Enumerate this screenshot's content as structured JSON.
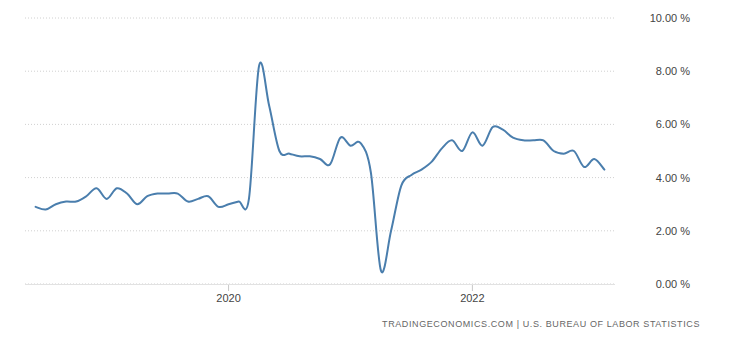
{
  "chart_data": {
    "type": "line",
    "source": "TRADINGECONOMICS.COM | U.S. BUREAU OF LABOR STATISTICS",
    "x": [
      2018.417,
      2018.5,
      2018.583,
      2018.667,
      2018.75,
      2018.833,
      2018.917,
      2019,
      2019.083,
      2019.167,
      2019.25,
      2019.333,
      2019.417,
      2019.5,
      2019.583,
      2019.667,
      2019.75,
      2019.833,
      2019.917,
      2020,
      2020.083,
      2020.167,
      2020.25,
      2020.333,
      2020.417,
      2020.5,
      2020.583,
      2020.667,
      2020.75,
      2020.833,
      2020.917,
      2021,
      2021.083,
      2021.167,
      2021.25,
      2021.333,
      2021.417,
      2021.5,
      2021.583,
      2021.667,
      2021.75,
      2021.833,
      2021.917,
      2022,
      2022.083,
      2022.167,
      2022.25,
      2022.333,
      2022.417,
      2022.5,
      2022.583,
      2022.667,
      2022.75,
      2022.833,
      2022.917,
      2023,
      2023.083
    ],
    "values": [
      2.9,
      2.8,
      3.0,
      3.1,
      3.1,
      3.3,
      3.6,
      3.2,
      3.6,
      3.4,
      3.0,
      3.3,
      3.4,
      3.4,
      3.4,
      3.1,
      3.2,
      3.3,
      2.9,
      3.0,
      3.1,
      3.2,
      8.2,
      6.7,
      5.0,
      4.9,
      4.8,
      4.8,
      4.7,
      4.5,
      5.5,
      5.2,
      5.3,
      4.2,
      0.5,
      2.0,
      3.7,
      4.1,
      4.3,
      4.6,
      5.1,
      5.4,
      5.0,
      5.7,
      5.2,
      5.9,
      5.8,
      5.5,
      5.4,
      5.4,
      5.4,
      5.0,
      4.9,
      5.0,
      4.4,
      4.7,
      4.3
    ],
    "color": "#4a7ead",
    "xlim": [
      2018.33,
      2023.17
    ],
    "xticks": [
      2020,
      2022
    ],
    "ylim": [
      0,
      10
    ],
    "yticks": [
      {
        "value": 0,
        "label": "0.00 %"
      },
      {
        "value": 2,
        "label": "2.00 %"
      },
      {
        "value": 4,
        "label": "4.00 %"
      },
      {
        "value": 6,
        "label": "6.00 %"
      },
      {
        "value": 8,
        "label": "8.00 %"
      },
      {
        "value": 10,
        "label": "10.00 %"
      }
    ],
    "grid": true
  }
}
